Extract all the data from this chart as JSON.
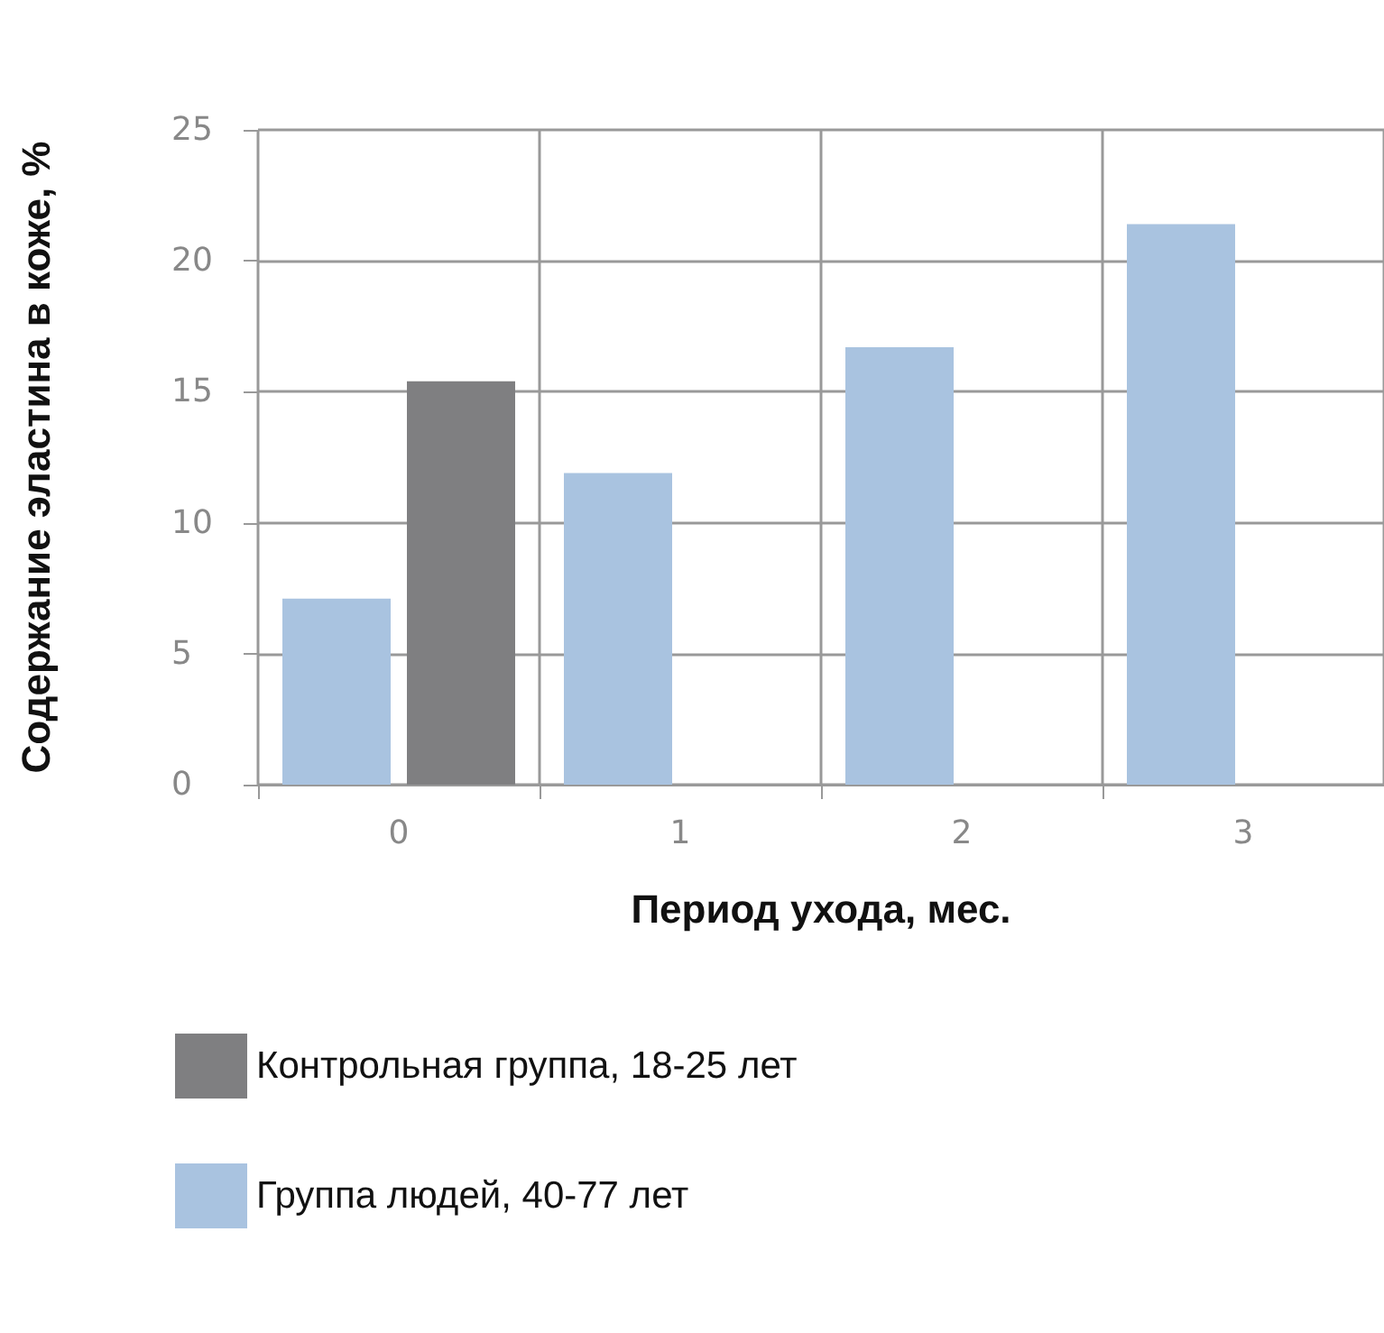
{
  "chart_data": {
    "type": "bar",
    "xlabel": "Период ухода, мес.",
    "ylabel": "Содержание эластина в коже, %",
    "categories": [
      "0",
      "1",
      "2",
      "3"
    ],
    "series": [
      {
        "name": "Группа людей, 40-77 лет",
        "color": "#a9c3e0",
        "values": [
          7.1,
          11.9,
          16.7,
          21.4
        ]
      },
      {
        "name": "Контрольная группа, 18-25 лет",
        "color": "#7f7f81",
        "values": [
          15.4,
          null,
          null,
          null
        ]
      }
    ],
    "ylim": [
      0,
      25
    ],
    "yticks": [
      0,
      5,
      10,
      15,
      20,
      25
    ],
    "grid": true,
    "legend": "bottom"
  }
}
